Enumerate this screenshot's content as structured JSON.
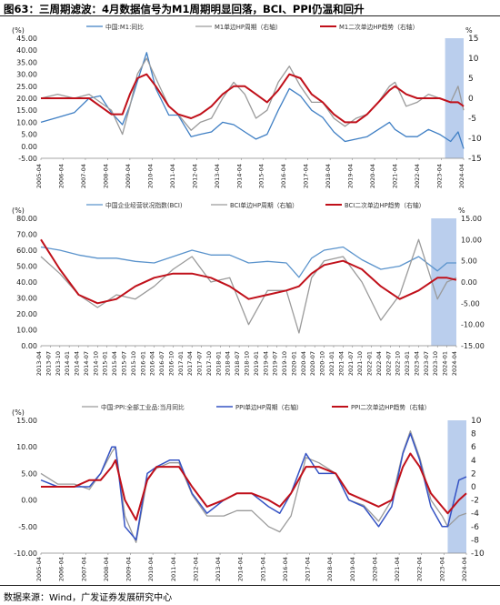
{
  "figure_title": "图63：三周期滤波：4月数据信号为M1周期明显回落，BCI、PPI仍温和回升",
  "source_note": "数据来源：Wind，广发证券发展研究中心",
  "chart_data": [
    {
      "type": "line",
      "title": "",
      "left_unit": "(%)",
      "right_unit": "%",
      "ylim_left": [
        -5,
        45
      ],
      "yticks_left": [
        "-5.00",
        "0.00",
        "5.00",
        "10.00",
        "15.00",
        "20.00",
        "25.00",
        "30.00",
        "35.00",
        "40.00",
        "45.00"
      ],
      "ylim_right": [
        -15,
        15
      ],
      "yticks_right": [
        "-15",
        "-10",
        "-5",
        "0",
        "5",
        "10",
        "15"
      ],
      "x_start": "2005-04",
      "x_end": "2024-04",
      "xticks": [
        "2005-04",
        "2006-04",
        "2007-04",
        "2008-04",
        "2009-04",
        "2010-04",
        "2011-04",
        "2012-04",
        "2013-04",
        "2014-04",
        "2015-04",
        "2016-04",
        "2017-04",
        "2018-04",
        "2019-04",
        "2020-04",
        "2021-04",
        "2022-04",
        "2023-04",
        "2024-04"
      ],
      "shade_range": [
        "2023-06",
        "2024-04"
      ],
      "legend_position": "top",
      "series": [
        {
          "name": "中国:M1:同比",
          "axis": "left",
          "color": "#3f7fc4",
          "width": 1.3,
          "x": [
            "2005-04",
            "2006-01",
            "2006-10",
            "2007-06",
            "2007-12",
            "2008-06",
            "2008-12",
            "2009-04",
            "2009-08",
            "2010-01",
            "2010-06",
            "2011-01",
            "2011-06",
            "2012-01",
            "2012-06",
            "2012-12",
            "2013-06",
            "2013-12",
            "2014-06",
            "2014-12",
            "2015-06",
            "2015-12",
            "2016-06",
            "2016-12",
            "2017-06",
            "2017-12",
            "2018-06",
            "2018-12",
            "2019-06",
            "2019-12",
            "2020-06",
            "2020-12",
            "2021-03",
            "2021-09",
            "2022-03",
            "2022-09",
            "2023-03",
            "2023-09",
            "2024-01",
            "2024-04"
          ],
          "y": [
            10,
            12,
            14,
            20,
            21,
            14,
            9,
            17,
            27,
            39,
            24,
            13,
            13,
            4,
            5,
            6,
            10,
            9,
            6,
            3,
            5,
            15,
            24,
            21,
            15,
            12,
            6,
            2,
            3,
            4,
            7,
            10,
            7,
            4,
            4,
            7,
            5,
            2,
            6,
            -1
          ]
        },
        {
          "name": "M1单边HP周期（右轴）",
          "axis": "right",
          "color": "#9a9a9a",
          "width": 1.3,
          "x": [
            "2005-04",
            "2006-01",
            "2006-10",
            "2007-06",
            "2007-12",
            "2008-06",
            "2008-12",
            "2009-04",
            "2009-08",
            "2010-01",
            "2010-06",
            "2011-01",
            "2011-06",
            "2012-01",
            "2012-06",
            "2012-12",
            "2013-06",
            "2013-12",
            "2014-06",
            "2014-12",
            "2015-06",
            "2015-12",
            "2016-06",
            "2016-12",
            "2017-06",
            "2017-12",
            "2018-06",
            "2018-12",
            "2019-06",
            "2019-12",
            "2020-06",
            "2020-12",
            "2021-03",
            "2021-09",
            "2022-03",
            "2022-09",
            "2023-03",
            "2023-09",
            "2024-01",
            "2024-04"
          ],
          "y": [
            0,
            1,
            0,
            1,
            -1,
            -3,
            -9,
            -2,
            6,
            10,
            5,
            -2,
            -4,
            -8,
            -6,
            -5,
            0,
            4,
            1,
            -5,
            -3,
            4,
            8,
            3,
            -1,
            -1,
            -5,
            -7,
            -5,
            -4,
            -1,
            3,
            4,
            -2,
            -1,
            1,
            0,
            -1,
            3,
            -3
          ]
        },
        {
          "name": "M1二次单边HP趋势（右轴）",
          "axis": "right",
          "color": "#c0101a",
          "width": 2,
          "x": [
            "2005-04",
            "2006-01",
            "2006-10",
            "2007-06",
            "2007-12",
            "2008-06",
            "2008-12",
            "2009-04",
            "2009-08",
            "2010-01",
            "2010-06",
            "2011-01",
            "2011-06",
            "2012-01",
            "2012-06",
            "2012-12",
            "2013-06",
            "2013-12",
            "2014-06",
            "2014-12",
            "2015-06",
            "2015-12",
            "2016-06",
            "2016-12",
            "2017-06",
            "2017-12",
            "2018-06",
            "2018-12",
            "2019-06",
            "2019-12",
            "2020-06",
            "2020-12",
            "2021-03",
            "2021-09",
            "2022-03",
            "2022-09",
            "2023-03",
            "2023-09",
            "2024-01",
            "2024-04"
          ],
          "y": [
            0,
            0,
            0,
            0,
            -2,
            -4,
            -4,
            1,
            5,
            6,
            3,
            -2,
            -4,
            -5,
            -4,
            -2,
            1,
            3,
            3,
            1,
            -1,
            2,
            6,
            5,
            1,
            -1,
            -4,
            -6,
            -6,
            -4,
            -1,
            2,
            3,
            1,
            0,
            0,
            0,
            -1,
            -1,
            -2
          ]
        }
      ]
    },
    {
      "type": "line",
      "title": "",
      "left_unit": "(%)",
      "right_unit": "%",
      "ylim_left": [
        0,
        80
      ],
      "yticks_left": [
        "0.00",
        "10.00",
        "20.00",
        "30.00",
        "40.00",
        "50.00",
        "60.00",
        "70.00",
        "80.00"
      ],
      "ylim_right": [
        -15,
        15
      ],
      "yticks_right": [
        "-15.00",
        "-10.00",
        "-5.00",
        "0.00",
        "5.00",
        "10.00",
        "15.00"
      ],
      "x_start": "2013-04",
      "x_end": "2024-04",
      "xticks": [
        "2013-04",
        "2013-07",
        "2013-10",
        "2014-01",
        "2014-04",
        "2014-07",
        "2014-10",
        "2015-01",
        "2015-04",
        "2015-07",
        "2015-10",
        "2016-01",
        "2016-04",
        "2016-07",
        "2016-10",
        "2017-01",
        "2017-04",
        "2017-07",
        "2017-10",
        "2018-01",
        "2018-04",
        "2018-07",
        "2018-10",
        "2019-01",
        "2019-04",
        "2019-07",
        "2019-10",
        "2020-01",
        "2020-04",
        "2020-07",
        "2020-10",
        "2021-01",
        "2021-04",
        "2021-07",
        "2021-10",
        "2022-01",
        "2022-04",
        "2022-07",
        "2022-10",
        "2023-01",
        "2023-04",
        "2023-07",
        "2023-10",
        "2024-01",
        "2024-04"
      ],
      "shade_range": [
        "2023-08",
        "2024-04"
      ],
      "legend_position": "top",
      "series": [
        {
          "name": "中国企业经营状况指数(BCI)",
          "axis": "left",
          "color": "#5a93cc",
          "width": 1.3,
          "x": [
            "2013-04",
            "2013-10",
            "2014-04",
            "2014-10",
            "2015-04",
            "2015-10",
            "2016-04",
            "2016-10",
            "2017-04",
            "2017-10",
            "2018-04",
            "2018-10",
            "2019-04",
            "2019-10",
            "2020-02",
            "2020-06",
            "2020-10",
            "2021-04",
            "2021-10",
            "2022-04",
            "2022-10",
            "2023-04",
            "2023-10",
            "2024-01",
            "2024-04"
          ],
          "y": [
            62,
            60,
            57,
            55,
            55,
            53,
            52,
            56,
            60,
            57,
            57,
            52,
            53,
            52,
            43,
            55,
            60,
            62,
            54,
            48,
            50,
            56,
            47,
            52,
            52
          ]
        },
        {
          "name": "BCI单边HP周期（右轴）",
          "axis": "right",
          "color": "#9a9a9a",
          "width": 1.3,
          "x": [
            "2013-04",
            "2013-10",
            "2014-04",
            "2014-10",
            "2015-04",
            "2015-10",
            "2016-04",
            "2016-10",
            "2017-04",
            "2017-10",
            "2018-04",
            "2018-10",
            "2019-04",
            "2019-10",
            "2020-02",
            "2020-06",
            "2020-10",
            "2021-04",
            "2021-10",
            "2022-04",
            "2022-10",
            "2023-04",
            "2023-10",
            "2024-01",
            "2024-04"
          ],
          "y": [
            6,
            2,
            -3,
            -6,
            -3,
            -4,
            -1,
            3,
            6,
            0,
            1,
            -10,
            -2,
            -2,
            -12,
            1,
            5,
            6,
            0,
            -9,
            -3,
            10,
            -4,
            0,
            1
          ]
        },
        {
          "name": "BCI二次单边HP趋势（右轴）",
          "axis": "right",
          "color": "#c0101a",
          "width": 2,
          "x": [
            "2013-04",
            "2013-10",
            "2014-04",
            "2014-10",
            "2015-04",
            "2015-10",
            "2016-04",
            "2016-10",
            "2017-04",
            "2017-10",
            "2018-04",
            "2018-10",
            "2019-04",
            "2019-10",
            "2020-02",
            "2020-06",
            "2020-10",
            "2021-04",
            "2021-10",
            "2022-04",
            "2022-10",
            "2023-04",
            "2023-10",
            "2024-01",
            "2024-04"
          ],
          "y": [
            10,
            3,
            -3,
            -5,
            -4,
            -1,
            1,
            2,
            2,
            1,
            -1,
            -4,
            -3,
            -2,
            -1,
            2,
            4,
            5,
            3,
            -1,
            -4,
            -2,
            1,
            1,
            0.5
          ]
        }
      ]
    },
    {
      "type": "line",
      "title": "",
      "left_unit": "(%)",
      "right_unit": "",
      "ylim_left": [
        -10,
        15
      ],
      "yticks_left": [
        "-10.00",
        "-5.00",
        "0.00",
        "5.00",
        "10.00",
        "15.00"
      ],
      "ylim_right": [
        -10,
        10
      ],
      "yticks_right": [
        "-10",
        "-8",
        "-6",
        "-4",
        "-2",
        "0",
        "2",
        "4",
        "6",
        "8",
        "10"
      ],
      "x_start": "2005-04",
      "x_end": "2024-04",
      "xticks": [
        "2005-04",
        "2006-04",
        "2007-04",
        "2008-04",
        "2009-04",
        "2010-04",
        "2011-04",
        "2012-04",
        "2013-04",
        "2014-04",
        "2015-04",
        "2016-04",
        "2017-04",
        "2018-04",
        "2019-04",
        "2020-04",
        "2021-04",
        "2022-04",
        "2023-04",
        "2024-04"
      ],
      "shade_range": [
        "2023-06",
        "2024-04"
      ],
      "legend_position": "top",
      "series": [
        {
          "name": "中国:PPI:全部工业品:当月同比",
          "axis": "left",
          "color": "#9a9a9a",
          "width": 1.3,
          "x": [
            "2005-04",
            "2006-01",
            "2006-10",
            "2007-06",
            "2007-12",
            "2008-06",
            "2008-08",
            "2009-01",
            "2009-07",
            "2010-01",
            "2010-06",
            "2011-01",
            "2011-06",
            "2012-01",
            "2012-09",
            "2013-06",
            "2014-01",
            "2014-09",
            "2015-06",
            "2015-12",
            "2016-06",
            "2017-02",
            "2017-09",
            "2018-06",
            "2019-01",
            "2019-09",
            "2020-05",
            "2020-12",
            "2021-06",
            "2021-10",
            "2022-03",
            "2022-09",
            "2023-03",
            "2023-06",
            "2023-12",
            "2024-04"
          ],
          "y": [
            5,
            3,
            3,
            2,
            5,
            9,
            10,
            -3,
            -8,
            4,
            6,
            7,
            7,
            1,
            -3,
            -3,
            -2,
            -2,
            -5,
            -6,
            -3,
            8,
            7,
            5,
            0,
            -1,
            -4,
            0,
            9,
            13,
            8,
            0,
            -3,
            -5,
            -3,
            -2.5
          ]
        },
        {
          "name": "PPI单边HP周期（右轴）",
          "axis": "right",
          "color": "#3553c4",
          "width": 1.5,
          "x": [
            "2005-04",
            "2006-01",
            "2006-10",
            "2007-06",
            "2007-12",
            "2008-06",
            "2008-08",
            "2009-01",
            "2009-07",
            "2010-01",
            "2010-06",
            "2011-01",
            "2011-06",
            "2012-01",
            "2012-09",
            "2013-06",
            "2014-01",
            "2014-09",
            "2015-06",
            "2015-12",
            "2016-06",
            "2017-02",
            "2017-09",
            "2018-06",
            "2019-01",
            "2019-09",
            "2020-05",
            "2020-12",
            "2021-06",
            "2021-10",
            "2022-03",
            "2022-09",
            "2023-03",
            "2023-06",
            "2023-12",
            "2024-04"
          ],
          "y": [
            1,
            0,
            0,
            0,
            2,
            6,
            6,
            -6,
            -8,
            2,
            3,
            4,
            4,
            -1,
            -4,
            -2,
            -1,
            -1,
            -3,
            -4,
            -1,
            5,
            2,
            2,
            -2,
            -3,
            -6,
            -3,
            5,
            8,
            4,
            -3,
            -6,
            -6,
            1,
            1.5
          ]
        },
        {
          "name": "PPI二次单边HP趋势（右轴）",
          "axis": "right",
          "color": "#c0101a",
          "width": 2,
          "x": [
            "2005-04",
            "2006-01",
            "2006-10",
            "2007-06",
            "2007-12",
            "2008-06",
            "2008-08",
            "2009-01",
            "2009-07",
            "2010-01",
            "2010-06",
            "2011-01",
            "2011-06",
            "2012-01",
            "2012-09",
            "2013-06",
            "2014-01",
            "2014-09",
            "2015-06",
            "2015-12",
            "2016-06",
            "2017-02",
            "2017-09",
            "2018-06",
            "2019-01",
            "2019-09",
            "2020-05",
            "2020-12",
            "2021-06",
            "2021-10",
            "2022-03",
            "2022-09",
            "2023-03",
            "2023-06",
            "2023-12",
            "2024-04"
          ],
          "y": [
            0,
            0,
            0,
            1,
            1,
            3,
            4,
            -2,
            -5,
            1,
            3,
            3,
            3,
            0,
            -3,
            -2,
            -1,
            -1,
            -2,
            -3,
            -1,
            3,
            3,
            2,
            -1,
            -2,
            -3,
            -2,
            3,
            5,
            3,
            -1,
            -3,
            -4,
            -2,
            -1
          ]
        }
      ]
    }
  ]
}
